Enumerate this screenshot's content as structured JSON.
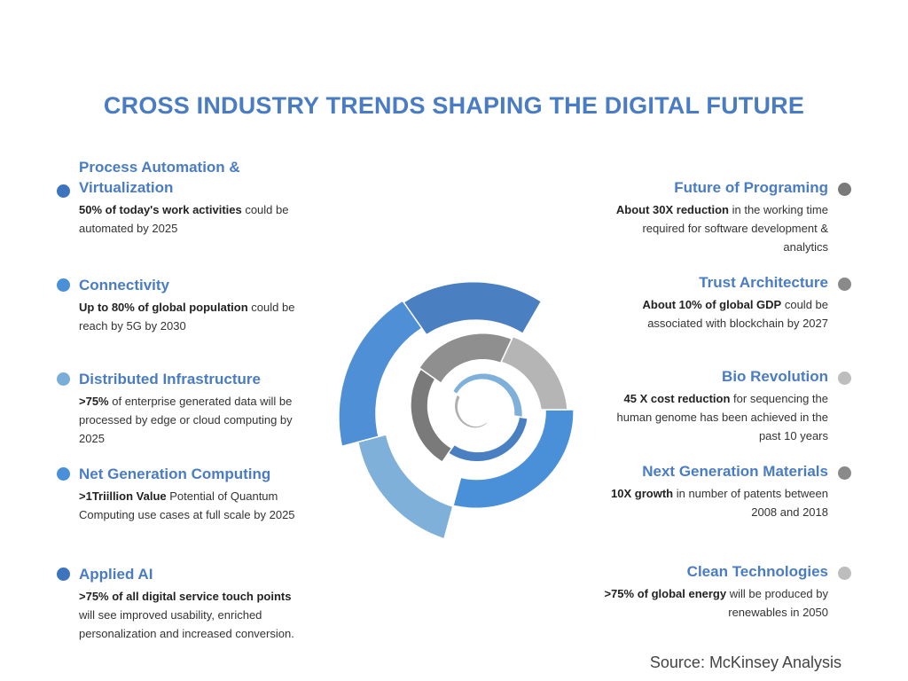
{
  "title": "CROSS INDUSTRY TRENDS SHAPING THE DIGITAL FUTURE",
  "left_items": [
    {
      "heading": "Process Automation & Virtualization",
      "bold": "50% of today's work activities",
      "rest": " could be automated by 2025",
      "dot_color": "#3d74bd"
    },
    {
      "heading": "Connectivity",
      "bold": "Up to 80% of global population",
      "rest": " could be reach by 5G by 2030",
      "dot_color": "#4a90d9"
    },
    {
      "heading": "Distributed Infrastructure",
      "bold": ">75%",
      "rest": " of enterprise generated data will be processed by edge or cloud computing by 2025",
      "dot_color": "#7aaed8"
    },
    {
      "heading": "Net Generation Computing",
      "bold": ">1Triillion Value",
      "rest": " Potential of Quantum Computing use cases at full scale by 2025",
      "dot_color": "#4a90d9"
    },
    {
      "heading": "Applied AI",
      "bold": ">75% of all digital service touch points",
      "rest": " will see improved usability, enriched personalization and increased conversion.",
      "dot_color": "#3d74bd"
    }
  ],
  "right_items": [
    {
      "heading": "Future of Programing",
      "bold": "About 30X reduction",
      "rest": " in the working time required for software development & analytics",
      "dot_color": "#7a7a7a"
    },
    {
      "heading": "Trust  Architecture",
      "bold": "About 10% of global GDP",
      "rest": " could be associated with blockchain by 2027",
      "dot_color": "#8a8a8a"
    },
    {
      "heading": "Bio Revolution",
      "bold": "45 X cost reduction",
      "rest": " for sequencing the human genome has been achieved in the past 10 years",
      "dot_color": "#bdbdbd"
    },
    {
      "heading": "Next Generation Materials",
      "bold": "10X growth",
      "rest": " in number of patents between 2008 and 2018",
      "dot_color": "#8a8a8a"
    },
    {
      "heading": "Clean Technologies",
      "bold": ">75% of global energy",
      "rest": " will be produced by renewables in 2050",
      "dot_color": "#bdbdbd"
    }
  ],
  "source": "Source: McKinsey Analysis",
  "spiral": {
    "segment_colors": [
      "#4a7fc2",
      "#4f8fd6",
      "#7eb0da",
      "#4a90d9",
      "#b5b5b5",
      "#8f8f8f",
      "#7a7a7a",
      "#4a7fc2",
      "#7eb0da",
      "#b0b0b0"
    ]
  }
}
